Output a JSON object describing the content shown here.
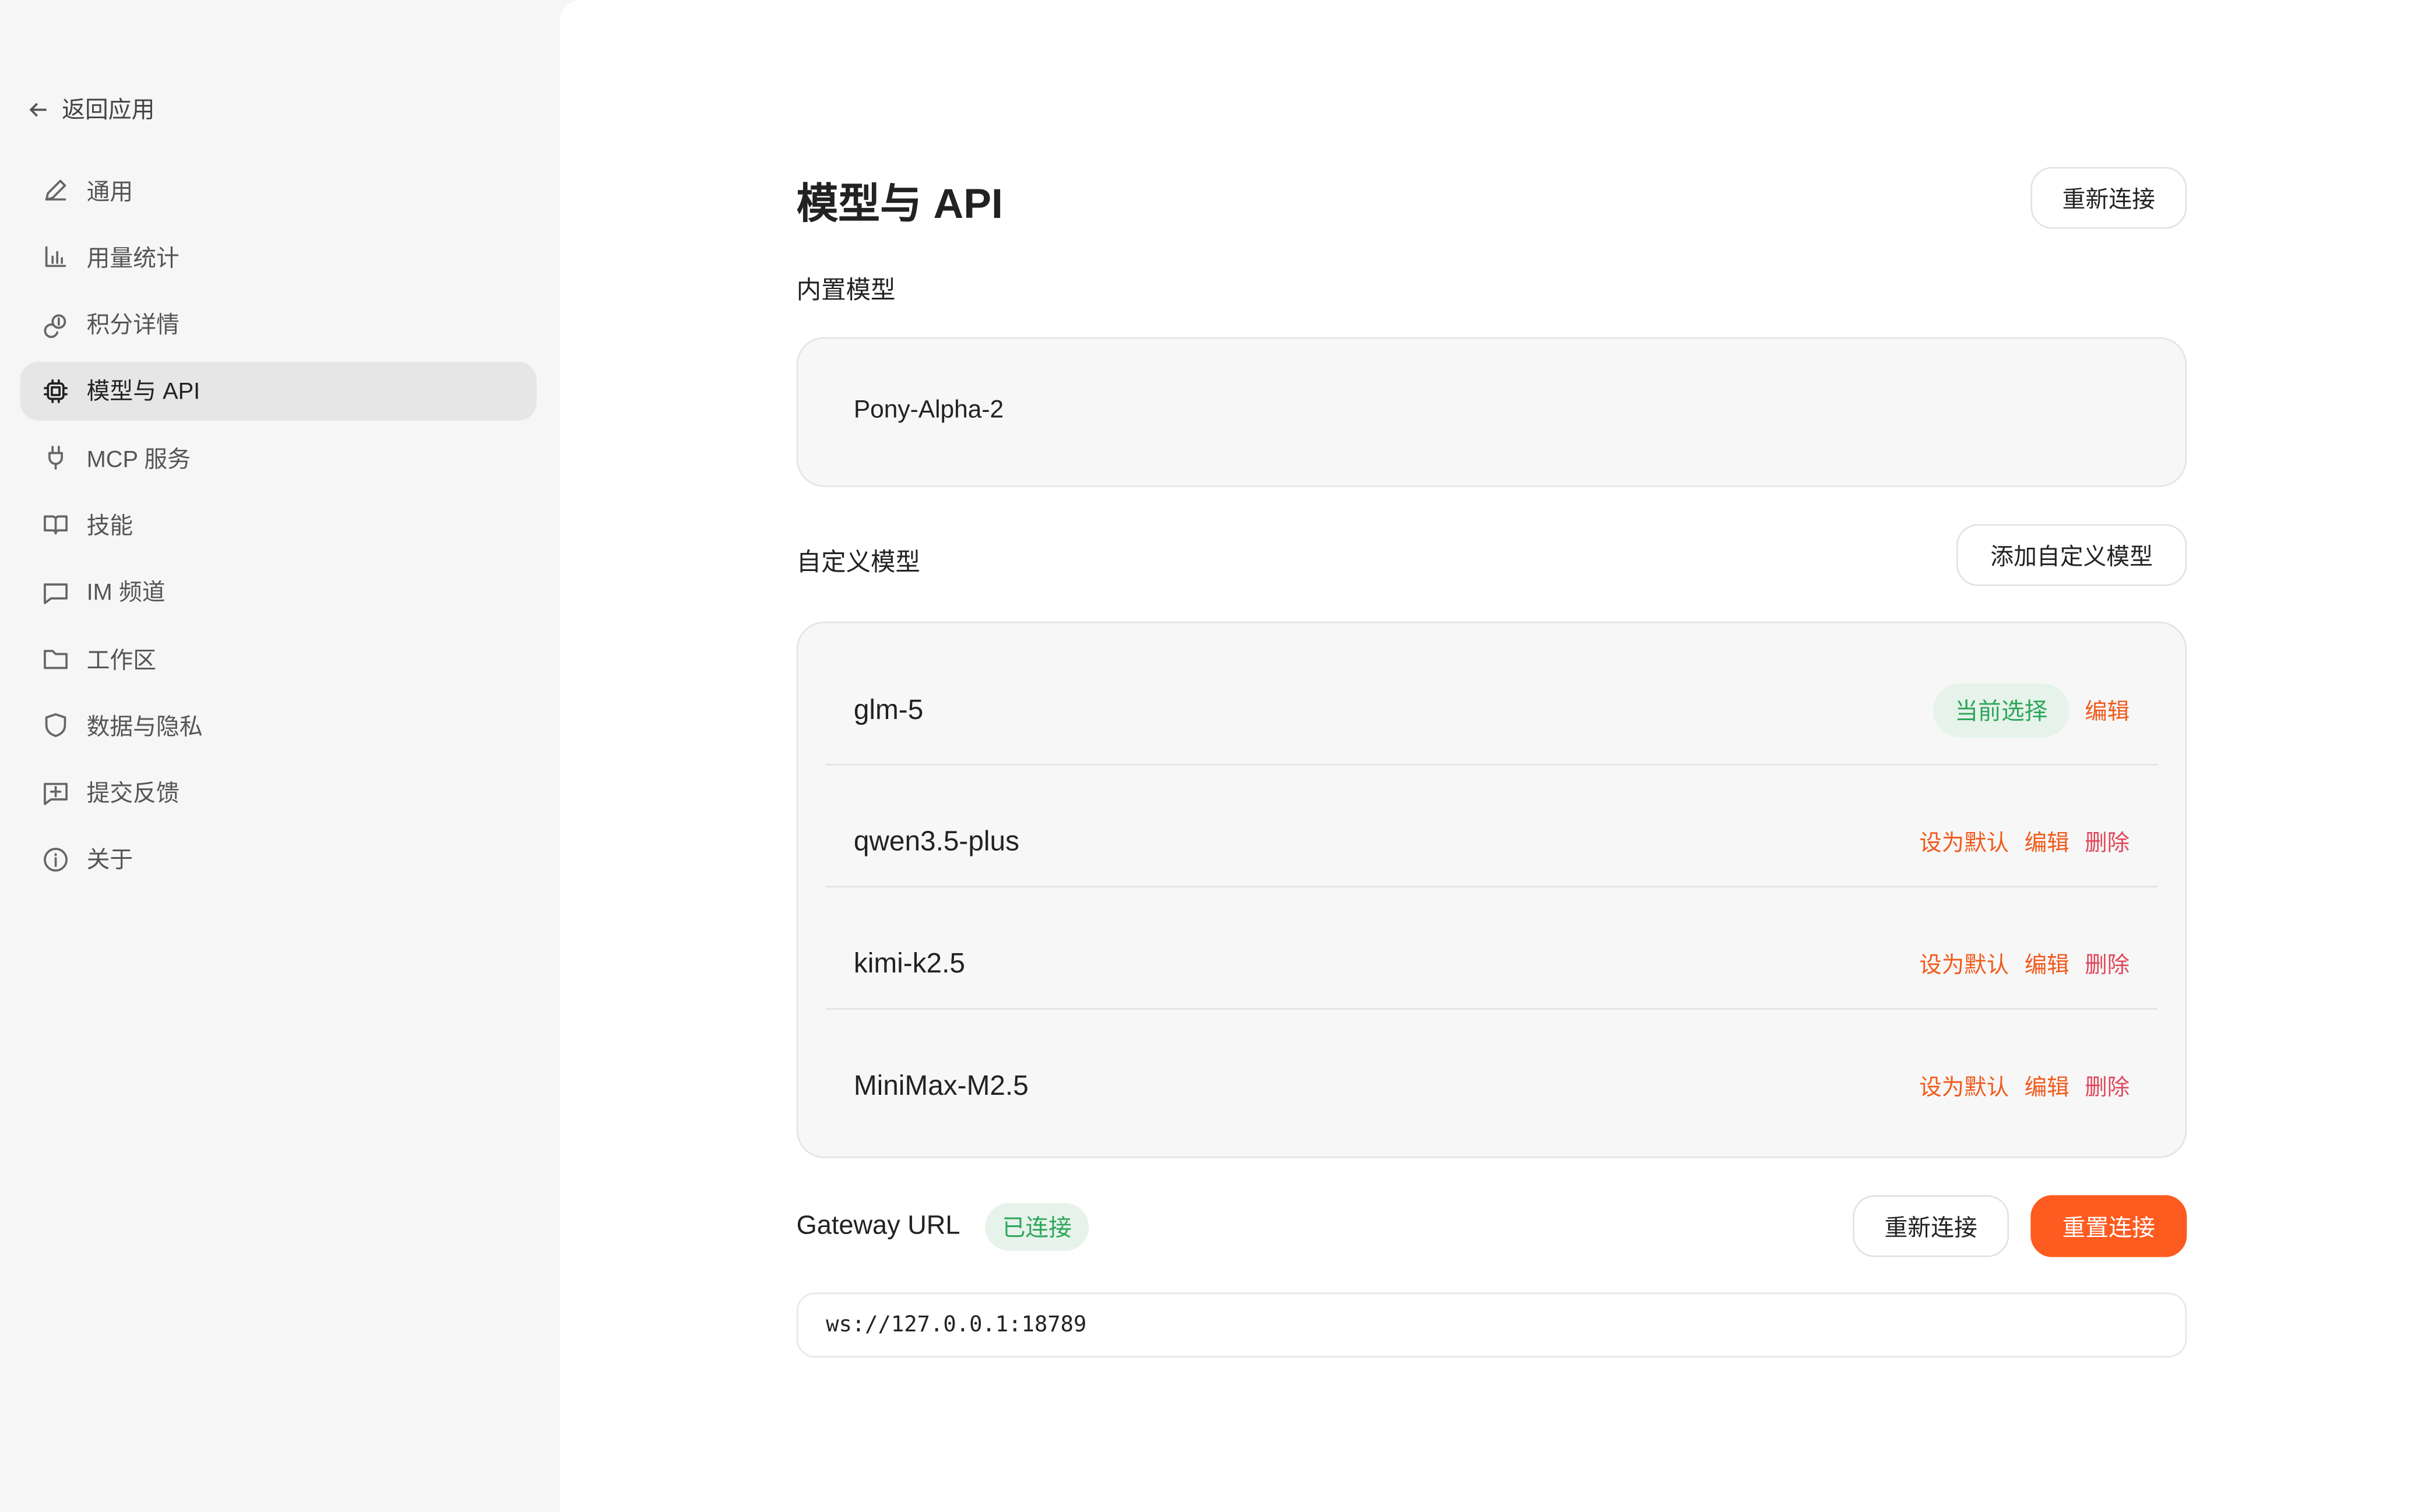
{
  "sidebar": {
    "back_label": "返回应用",
    "items": [
      {
        "label": "通用",
        "icon": "pencil-icon"
      },
      {
        "label": "用量统计",
        "icon": "bar-chart-icon"
      },
      {
        "label": "积分详情",
        "icon": "coins-icon"
      },
      {
        "label": "模型与 API",
        "icon": "chip-icon",
        "active": true
      },
      {
        "label": "MCP 服务",
        "icon": "plug-icon"
      },
      {
        "label": "技能",
        "icon": "book-icon"
      },
      {
        "label": "IM 频道",
        "icon": "message-icon"
      },
      {
        "label": "工作区",
        "icon": "folder-icon"
      },
      {
        "label": "数据与隐私",
        "icon": "shield-icon"
      },
      {
        "label": "提交反馈",
        "icon": "feedback-icon"
      },
      {
        "label": "关于",
        "icon": "info-icon"
      }
    ]
  },
  "main": {
    "title": "模型与 API",
    "reconnect_top": "重新连接",
    "builtin_title": "内置模型",
    "builtin_model": "Pony-Alpha-2",
    "custom_title": "自定义模型",
    "add_custom": "添加自定义模型",
    "models": [
      {
        "name": "glm-5",
        "current": "当前选择",
        "edit": "编辑"
      },
      {
        "name": "qwen3.5-plus",
        "set_default": "设为默认",
        "edit": "编辑",
        "delete": "删除"
      },
      {
        "name": "kimi-k2.5",
        "set_default": "设为默认",
        "edit": "编辑",
        "delete": "删除"
      },
      {
        "name": "MiniMax-M2.5",
        "set_default": "设为默认",
        "edit": "编辑",
        "delete": "删除"
      }
    ],
    "gateway_label": "Gateway URL",
    "gateway_status": "已连接",
    "reconnect": "重新连接",
    "reset_connect": "重置连接",
    "gateway_url": "ws://127.0.0.1:18789"
  },
  "colors": {
    "accent": "#f25a1c",
    "success": "#2ea65a",
    "danger": "#e0475a"
  }
}
